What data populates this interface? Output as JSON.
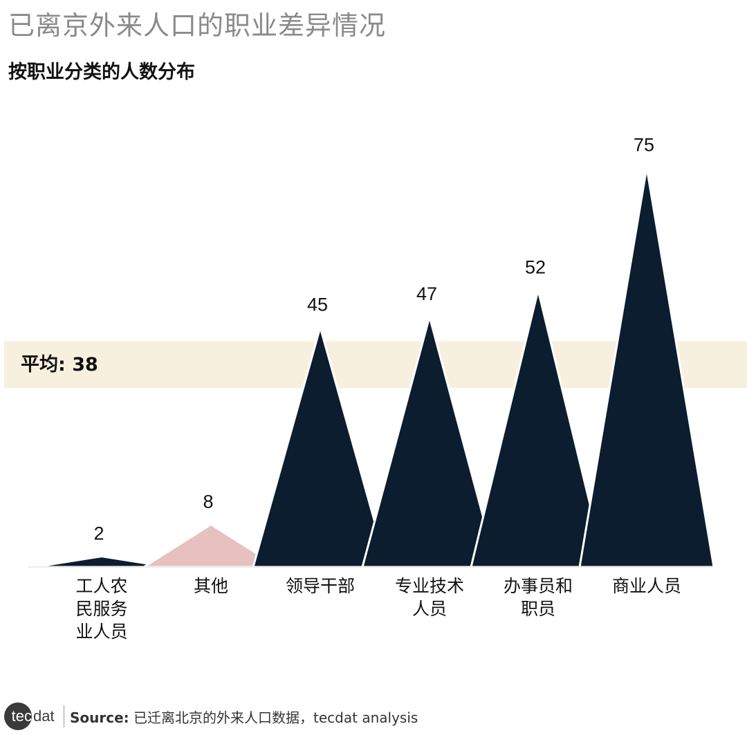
{
  "title": "已离京外来人口的职业差异情况",
  "subtitle": "按职业分类的人数分布",
  "average": {
    "label": "平均: ",
    "value": "38"
  },
  "footer": {
    "logo_tec": "tec",
    "logo_dat": "dat",
    "source_label": "Source:",
    "source_text": " 已迁离北京的外来人口数据，tecdat analysis"
  },
  "colors": {
    "dark": "#0b1d2e",
    "highlight": "#e6c1bf",
    "avg_band": "#f7f0de"
  },
  "chart_data": {
    "type": "bar",
    "categories": [
      [
        "工人农",
        "民服务",
        "业人员"
      ],
      [
        "其他"
      ],
      [
        "领导干部"
      ],
      [
        "专业技术",
        "人员"
      ],
      [
        "办事员和",
        "职员"
      ],
      [
        "商业人员"
      ]
    ],
    "values": [
      2,
      8,
      45,
      47,
      52,
      75
    ],
    "highlight_index": 1,
    "average": 38,
    "title": "已离京外来人口的职业差异情况",
    "subtitle": "按职业分类的人数分布",
    "ylim": [
      0,
      80
    ],
    "grid": false
  }
}
